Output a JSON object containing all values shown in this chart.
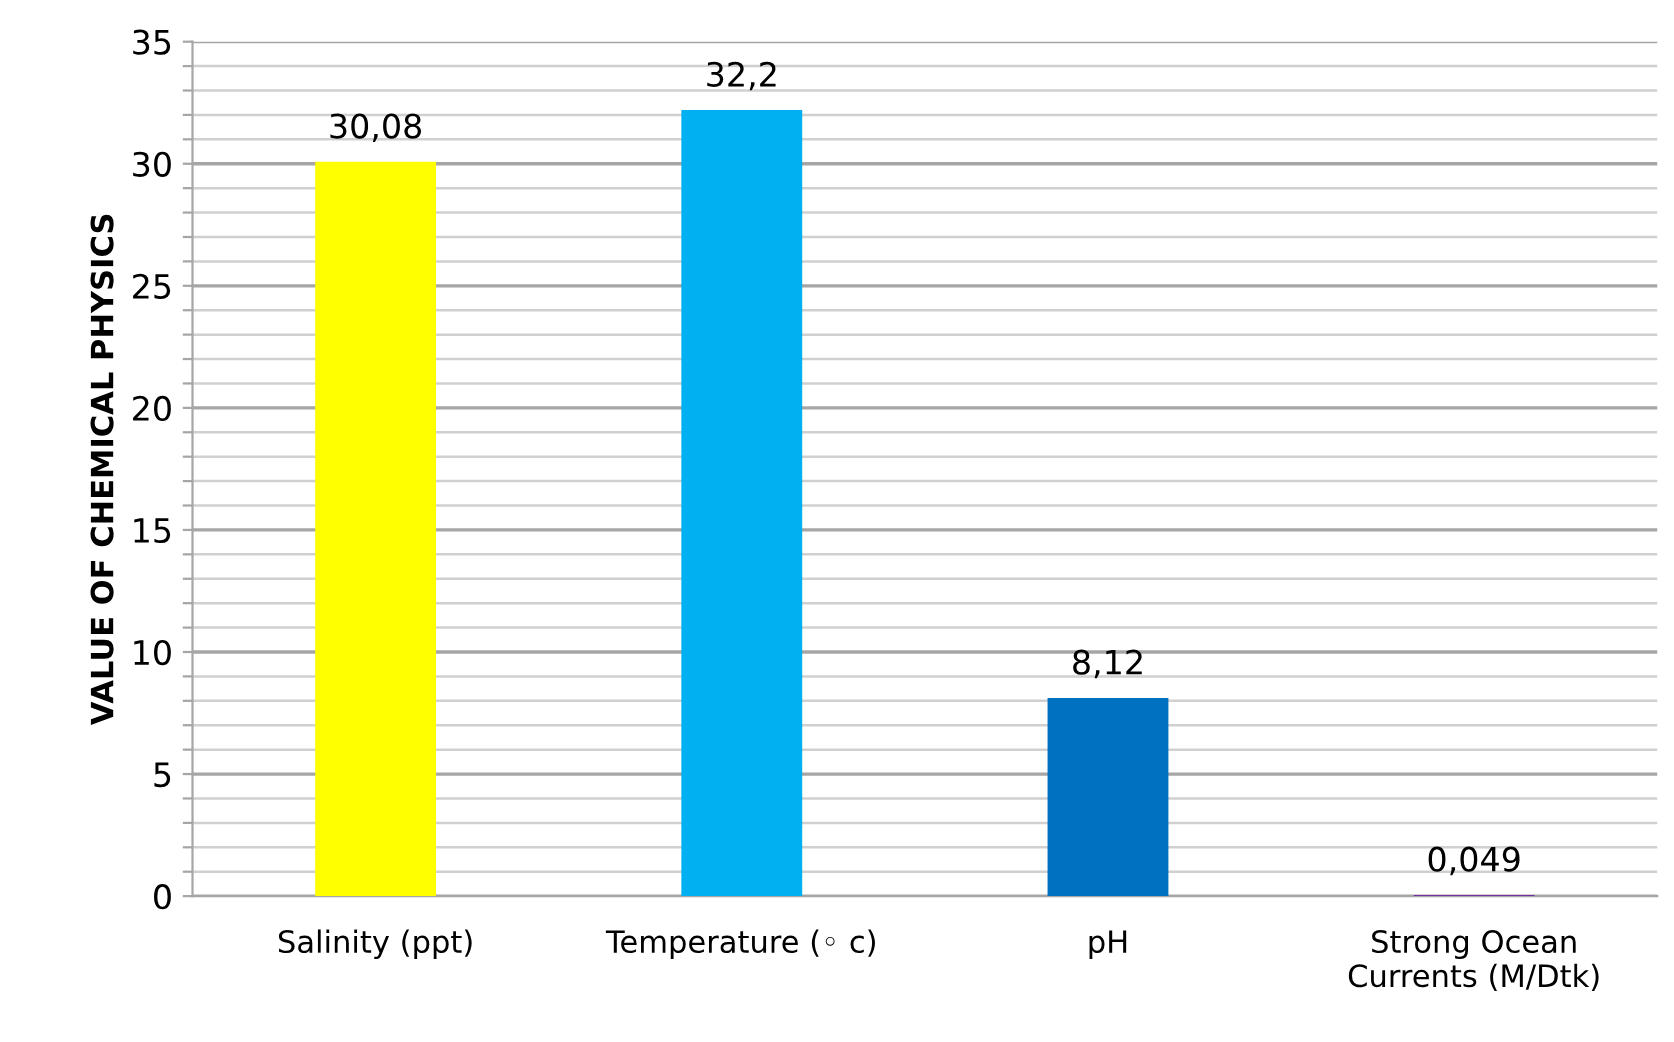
{
  "chart_data": {
    "type": "bar",
    "ylabel": "VALUE OF CHEMICAL PHYSICS",
    "categories": [
      "Salinity (ppt)",
      "Temperature (◦ c)",
      "pH",
      "Strong Ocean\nCurrents (M/Dtk)"
    ],
    "values": [
      30.08,
      32.2,
      8.12,
      0.049
    ],
    "colors": [
      "#ffff00",
      "#00b0f0",
      "#0070c0",
      "#7030a0"
    ],
    "value_labels": [
      "30,08",
      "32,2",
      "8,12",
      "0,049"
    ],
    "ylim": [
      0,
      35
    ],
    "yticks": [
      0,
      {
        "value": 1,
        "label": null
      },
      {
        "value": 2,
        "label": null
      },
      {
        "value": 3,
        "label": null
      },
      {
        "value": 4,
        "label": null
      },
      5,
      {
        "value": 6,
        "label": null
      },
      {
        "value": 7,
        "label": null
      },
      {
        "value": 8,
        "label": null
      },
      {
        "value": 9,
        "label": null
      },
      10,
      {
        "value": 11,
        "label": null
      },
      {
        "value": 12,
        "label": null
      },
      {
        "value": 13,
        "label": null
      },
      {
        "value": 14,
        "label": null
      },
      15,
      {
        "value": 16,
        "label": null
      },
      {
        "value": 17,
        "label": null
      },
      {
        "value": 18,
        "label": null
      },
      {
        "value": 19,
        "label": null
      },
      20,
      {
        "value": 21,
        "label": null
      },
      {
        "value": 22,
        "label": null
      },
      {
        "value": 23,
        "label": null
      },
      {
        "value": 24,
        "label": null
      },
      25,
      {
        "value": 26,
        "label": null
      },
      {
        "value": 27,
        "label": null
      },
      {
        "value": 28,
        "label": null
      },
      {
        "value": 29,
        "label": null
      },
      30,
      {
        "value": 31,
        "label": null
      },
      {
        "value": 32,
        "label": null
      },
      {
        "value": 33,
        "label": null
      },
      {
        "value": 34,
        "label": null
      },
      35
    ],
    "grid": "y"
  }
}
